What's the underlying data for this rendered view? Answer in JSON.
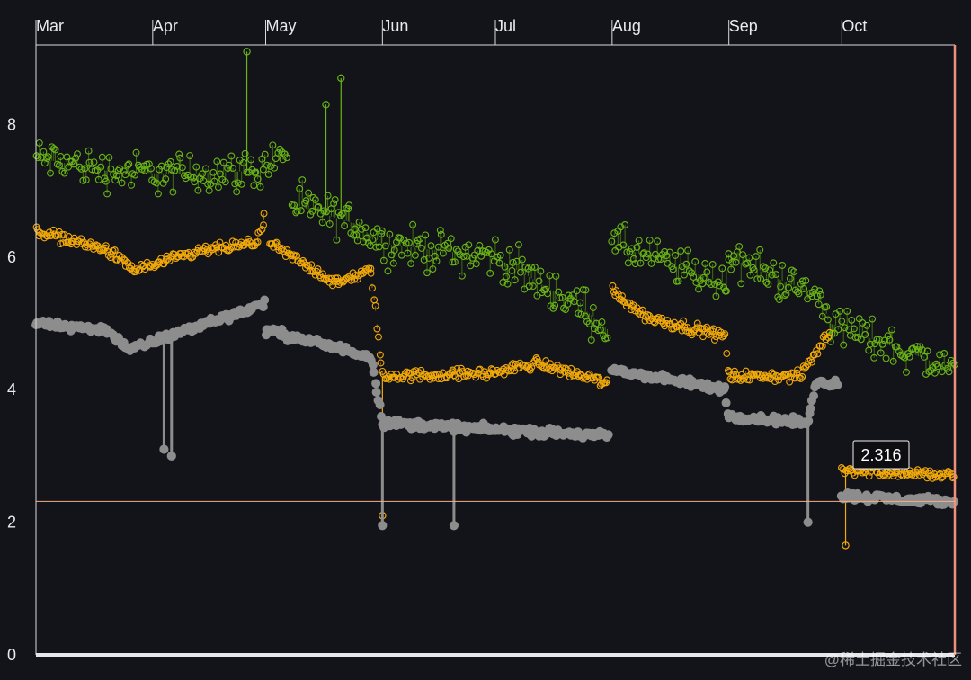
{
  "chart_data": {
    "type": "scatter",
    "x_axis": {
      "type": "time",
      "position": "top",
      "ticks": [
        "Mar",
        "Apr",
        "May",
        "Jun",
        "Jul",
        "Aug",
        "Sep",
        "Oct"
      ]
    },
    "y_axis": {
      "ylim": [
        0,
        9.2
      ],
      "ticks": [
        0,
        2,
        4,
        6,
        8
      ]
    },
    "grid": false,
    "legend": "none",
    "reference_line": {
      "y": 2.316,
      "color": "#f5b08a"
    },
    "tooltip": {
      "value": "2.316"
    },
    "series": [
      {
        "color": "#6ab515",
        "segments": [
          {
            "x": [
              "2022-03-01",
              "2022-03-20",
              "2022-04-06",
              "2022-04-28",
              "2022-05-07"
            ],
            "y": [
              7.5,
              7.3,
              7.25,
              7.3,
              7.6
            ]
          },
          {
            "x": [
              "2022-05-08",
              "2022-05-25",
              "2022-06-01",
              "2022-07-01",
              "2022-07-25",
              "2022-07-31"
            ],
            "y": [
              6.8,
              6.5,
              6.2,
              6.0,
              5.2,
              4.9
            ]
          },
          {
            "x": [
              "2022-08-01",
              "2022-08-31",
              "2022-09-01",
              "2022-09-25",
              "2022-09-28",
              "2022-10-31"
            ],
            "y": [
              6.2,
              5.6,
              6.0,
              5.4,
              5.0,
              4.3
            ]
          }
        ],
        "outliers": [
          {
            "x": "2022-04-26",
            "y": 9.1
          },
          {
            "x": "2022-05-21",
            "y": 8.7
          },
          {
            "x": "2022-05-17",
            "y": 8.3
          }
        ]
      },
      {
        "color": "#f2aa0a",
        "segments": [
          {
            "x": [
              "2022-03-01",
              "2022-03-20",
              "2022-03-27",
              "2022-04-15",
              "2022-04-28",
              "2022-05-01"
            ],
            "y": [
              6.4,
              6.1,
              5.8,
              6.1,
              6.2,
              6.6
            ]
          },
          {
            "x": [
              "2022-05-02",
              "2022-05-20",
              "2022-05-29",
              "2022-06-01",
              "2022-06-30",
              "2022-07-12",
              "2022-07-31"
            ],
            "y": [
              6.2,
              5.6,
              5.8,
              4.2,
              4.25,
              4.4,
              4.1
            ]
          },
          {
            "x": [
              "2022-08-01",
              "2022-08-10",
              "2022-08-31",
              "2022-09-01",
              "2022-09-20",
              "2022-09-28"
            ],
            "y": [
              5.5,
              5.1,
              4.8,
              4.2,
              4.2,
              4.9
            ]
          },
          {
            "x": [
              "2022-10-01",
              "2022-10-31"
            ],
            "y": [
              2.8,
              2.7
            ]
          }
        ],
        "outliers": [
          {
            "x": "2022-06-01",
            "y": 2.1
          },
          {
            "x": "2022-10-02",
            "y": 1.65
          }
        ]
      },
      {
        "color": "#8d8d8d",
        "segments": [
          {
            "x": [
              "2022-03-01",
              "2022-03-20",
              "2022-03-26",
              "2022-04-15",
              "2022-05-01"
            ],
            "y": [
              5.0,
              4.9,
              4.6,
              5.0,
              5.3
            ]
          },
          {
            "x": [
              "2022-05-01",
              "2022-05-29",
              "2022-06-01",
              "2022-07-31"
            ],
            "y": [
              4.9,
              4.5,
              3.5,
              3.3
            ]
          },
          {
            "x": [
              "2022-08-01",
              "2022-08-31",
              "2022-09-01",
              "2022-09-22",
              "2022-09-24",
              "2022-09-30"
            ],
            "y": [
              4.3,
              4.0,
              3.6,
              3.5,
              4.1,
              4.1
            ]
          },
          {
            "x": [
              "2022-10-01",
              "2022-10-31"
            ],
            "y": [
              2.4,
              2.3
            ]
          }
        ],
        "outliers": [
          {
            "x": "2022-04-04",
            "y": 3.1
          },
          {
            "x": "2022-04-06",
            "y": 3.0
          },
          {
            "x": "2022-06-01",
            "y": 1.95
          },
          {
            "x": "2022-06-20",
            "y": 1.95
          },
          {
            "x": "2022-09-22",
            "y": 2.0
          }
        ]
      }
    ]
  },
  "watermark": "@稀土掘金技术社区"
}
